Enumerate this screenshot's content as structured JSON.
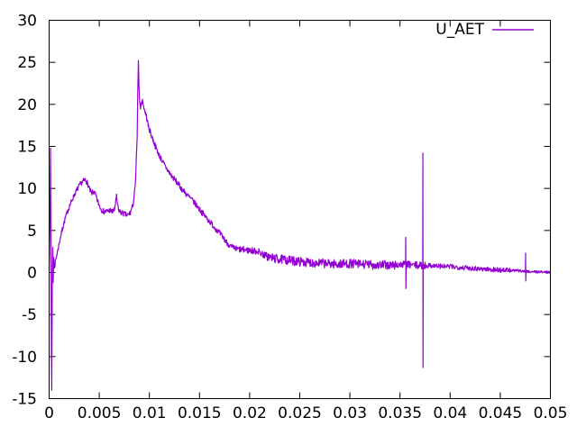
{
  "chart_data": {
    "type": "line",
    "title": "",
    "xlabel": "",
    "ylabel": "",
    "xlim": [
      0,
      0.05
    ],
    "ylim": [
      -15,
      30
    ],
    "grid": false,
    "legend_position": "top-right-inside",
    "background_color": "#ffffff",
    "axis_color": "#000000",
    "x_ticks": [
      {
        "value": 0,
        "label": "0"
      },
      {
        "value": 0.005,
        "label": "0.005"
      },
      {
        "value": 0.01,
        "label": "0.01"
      },
      {
        "value": 0.015,
        "label": "0.015"
      },
      {
        "value": 0.02,
        "label": "0.02"
      },
      {
        "value": 0.025,
        "label": "0.025"
      },
      {
        "value": 0.03,
        "label": "0.03"
      },
      {
        "value": 0.035,
        "label": "0.035"
      },
      {
        "value": 0.04,
        "label": "0.04"
      },
      {
        "value": 0.045,
        "label": "0.045"
      },
      {
        "value": 0.05,
        "label": "0.05"
      }
    ],
    "y_ticks": [
      {
        "value": -15,
        "label": "-15"
      },
      {
        "value": -10,
        "label": "-10"
      },
      {
        "value": -5,
        "label": "-5"
      },
      {
        "value": 0,
        "label": "0"
      },
      {
        "value": 5,
        "label": "5"
      },
      {
        "value": 10,
        "label": "10"
      },
      {
        "value": 15,
        "label": "15"
      },
      {
        "value": 20,
        "label": "20"
      },
      {
        "value": 25,
        "label": "25"
      },
      {
        "value": 30,
        "label": "30"
      }
    ],
    "series": [
      {
        "name": "U_AET",
        "color": "#9400D3",
        "description": "noisy transient signal: initial +14.8/-14 oscillation at x~0.0002, rise to ~11 at x~0.0035, plateau ~7, sharp peak 25.4 at x~0.0089, decay to ~1 baseline, isolated spikes near 0.0356, 0.0373 and 0.0476, settling to 0 at 0.05",
        "anchor_points": [
          [
            0,
            0.3
          ],
          [
            0.0001,
            9.0
          ],
          [
            0.00014,
            14.8
          ],
          [
            0.00022,
            -9.0
          ],
          [
            0.00026,
            -14.0
          ],
          [
            0.00032,
            0.5
          ],
          [
            0.00036,
            3.0
          ],
          [
            0.0004,
            -1.2
          ],
          [
            0.00046,
            1.8
          ],
          [
            0.00052,
            0.5
          ],
          [
            0.0006,
            1.1
          ],
          [
            0.0008,
            2.3
          ],
          [
            0.001,
            3.5
          ],
          [
            0.0013,
            5.1
          ],
          [
            0.0016,
            6.4
          ],
          [
            0.0019,
            7.5
          ],
          [
            0.0022,
            8.4
          ],
          [
            0.0025,
            9.2
          ],
          [
            0.0028,
            9.9
          ],
          [
            0.0031,
            10.5
          ],
          [
            0.0034,
            10.9
          ],
          [
            0.0036,
            11.0
          ],
          [
            0.0038,
            10.7
          ],
          [
            0.004,
            10.0
          ],
          [
            0.0042,
            9.4
          ],
          [
            0.0044,
            9.6
          ],
          [
            0.0046,
            9.3
          ],
          [
            0.0048,
            8.6
          ],
          [
            0.005,
            8.0
          ],
          [
            0.0052,
            7.5
          ],
          [
            0.0055,
            7.2
          ],
          [
            0.0058,
            7.3
          ],
          [
            0.0061,
            7.4
          ],
          [
            0.0063,
            7.2
          ],
          [
            0.0065,
            7.4
          ],
          [
            0.00672,
            9.0
          ],
          [
            0.0069,
            7.5
          ],
          [
            0.0071,
            7.2
          ],
          [
            0.0074,
            7.0
          ],
          [
            0.0078,
            6.8
          ],
          [
            0.0081,
            7.1
          ],
          [
            0.0084,
            8.2
          ],
          [
            0.0086,
            10.5
          ],
          [
            0.00878,
            16.0
          ],
          [
            0.00885,
            22.0
          ],
          [
            0.0089,
            25.4
          ],
          [
            0.00894,
            23.5
          ],
          [
            0.00898,
            21.5
          ],
          [
            0.00904,
            20.2
          ],
          [
            0.0091,
            19.6
          ],
          [
            0.0093,
            20.5
          ],
          [
            0.0095,
            19.4
          ],
          [
            0.0097,
            18.6
          ],
          [
            0.0099,
            17.4
          ],
          [
            0.0102,
            16.3
          ],
          [
            0.0106,
            15.0
          ],
          [
            0.011,
            13.9
          ],
          [
            0.0114,
            13.0
          ],
          [
            0.0118,
            12.2
          ],
          [
            0.0122,
            11.5
          ],
          [
            0.0127,
            10.8
          ],
          [
            0.0132,
            10.0
          ],
          [
            0.0137,
            9.3
          ],
          [
            0.0142,
            8.7
          ],
          [
            0.0147,
            8.0
          ],
          [
            0.0152,
            7.2
          ],
          [
            0.0157,
            6.5
          ],
          [
            0.0162,
            5.8
          ],
          [
            0.0167,
            5.1
          ],
          [
            0.0172,
            4.4
          ],
          [
            0.0177,
            3.6
          ],
          [
            0.0181,
            3.1
          ],
          [
            0.0186,
            2.8
          ],
          [
            0.0194,
            2.7
          ],
          [
            0.0202,
            2.6
          ],
          [
            0.0209,
            2.5
          ],
          [
            0.0214,
            2.1
          ],
          [
            0.022,
            1.8
          ],
          [
            0.0228,
            1.6
          ],
          [
            0.0236,
            1.5
          ],
          [
            0.0246,
            1.35
          ],
          [
            0.0258,
            1.2
          ],
          [
            0.0272,
            1.1
          ],
          [
            0.0286,
            1.0
          ],
          [
            0.03,
            1.05
          ],
          [
            0.0314,
            0.95
          ],
          [
            0.0328,
            0.9
          ],
          [
            0.0342,
            0.85
          ],
          [
            0.0352,
            0.95
          ],
          [
            0.036,
            0.9
          ],
          [
            0.0366,
            0.85
          ],
          [
            0.0373,
            0.8
          ],
          [
            0.038,
            0.85
          ],
          [
            0.039,
            0.75
          ],
          [
            0.04,
            0.7
          ],
          [
            0.0412,
            0.6
          ],
          [
            0.0424,
            0.5
          ],
          [
            0.0436,
            0.4
          ],
          [
            0.0448,
            0.32
          ],
          [
            0.046,
            0.25
          ],
          [
            0.047,
            0.2
          ],
          [
            0.0478,
            0.12
          ],
          [
            0.0488,
            0.08
          ],
          [
            0.05,
            0.03
          ]
        ],
        "noise_segments": [
          [
            0.00055,
            0.004,
            0.3
          ],
          [
            0.004,
            0.0082,
            0.33
          ],
          [
            0.0082,
            0.0097,
            0.25
          ],
          [
            0.0097,
            0.015,
            0.35
          ],
          [
            0.015,
            0.0186,
            0.35
          ],
          [
            0.0186,
            0.0216,
            0.4
          ],
          [
            0.0216,
            0.0346,
            0.55
          ],
          [
            0.0346,
            0.0376,
            0.45
          ],
          [
            0.0376,
            0.046,
            0.3
          ],
          [
            0.046,
            0.05,
            0.15
          ]
        ],
        "spikes": [
          {
            "x": 0.03557,
            "up": 4.2,
            "down": -1.9
          },
          {
            "x": 0.03728,
            "up": 14.2,
            "down": -11.3
          },
          {
            "x": 0.04753,
            "up": 2.3,
            "down": -1.0
          }
        ]
      }
    ]
  }
}
